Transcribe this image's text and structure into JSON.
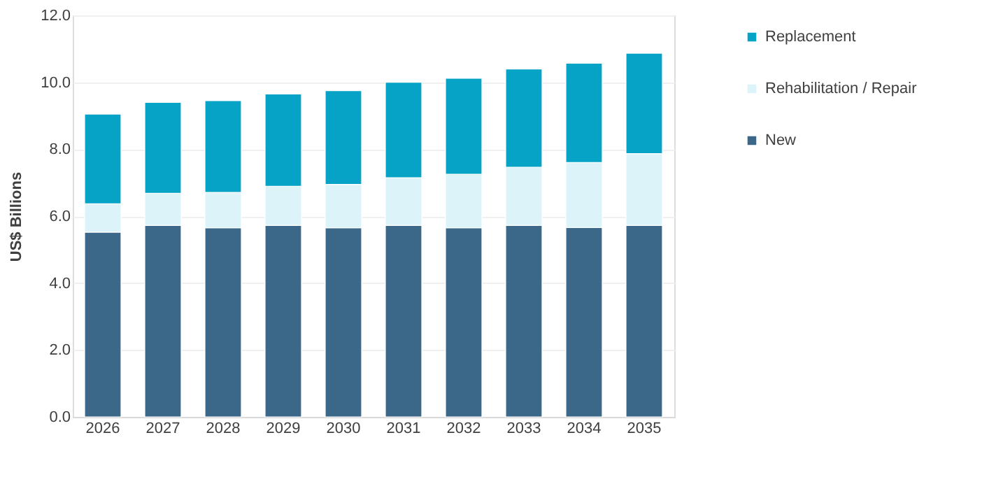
{
  "chart_data": {
    "type": "bar",
    "stacked": true,
    "ylabel": "US$ Billions",
    "categories": [
      "2026",
      "2027",
      "2028",
      "2029",
      "2030",
      "2031",
      "2032",
      "2033",
      "2034",
      "2035"
    ],
    "series": [
      {
        "name": "New",
        "color": "#3b6788",
        "values": [
          5.52,
          5.72,
          5.65,
          5.72,
          5.65,
          5.72,
          5.65,
          5.72,
          5.66,
          5.72
        ]
      },
      {
        "name": "Rehabilitation / Repair",
        "color": "#dcf4f9",
        "values": [
          0.85,
          0.96,
          1.06,
          1.17,
          1.3,
          1.43,
          1.6,
          1.74,
          1.94,
          2.15
        ]
      },
      {
        "name": "Replacement",
        "color": "#06a3c7",
        "values": [
          2.68,
          2.72,
          2.74,
          2.76,
          2.8,
          2.85,
          2.87,
          2.94,
          2.97,
          3.0
        ]
      }
    ],
    "ylim": [
      0,
      12
    ],
    "yticks": [
      {
        "value": 0,
        "label": "0.0"
      },
      {
        "value": 2,
        "label": "2.0"
      },
      {
        "value": 4,
        "label": "4.0"
      },
      {
        "value": 6,
        "label": "6.0"
      },
      {
        "value": 8,
        "label": "8.0"
      },
      {
        "value": 10,
        "label": "10.0"
      },
      {
        "value": 12,
        "label": "12.0"
      }
    ],
    "grid": "y",
    "legend": "right"
  }
}
